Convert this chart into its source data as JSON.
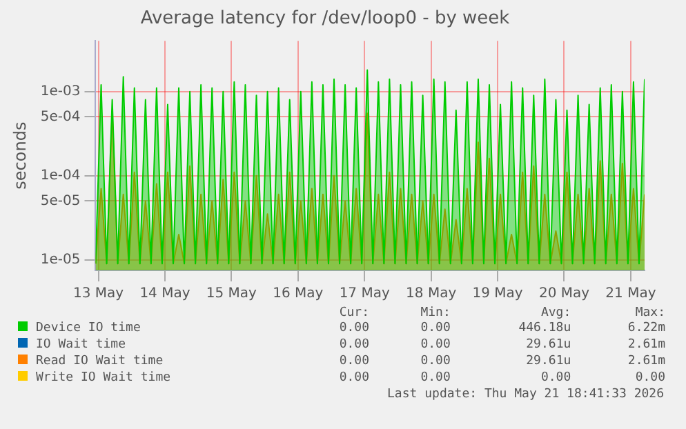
{
  "chart_data": {
    "type": "area",
    "title": "Average latency for /dev/loop0 - by week",
    "ylabel": "seconds",
    "log": "y",
    "grid": true,
    "legend": "bottom",
    "x": [
      "2026-05-12T23:00",
      "2026-05-13T01:00",
      "2026-05-13T03:00",
      "2026-05-13T05:00",
      "2026-05-13T07:00",
      "2026-05-13T09:00",
      "2026-05-13T11:00",
      "2026-05-13T13:00",
      "2026-05-13T15:00",
      "2026-05-13T17:00",
      "2026-05-13T19:00",
      "2026-05-13T21:00",
      "2026-05-13T23:00",
      "2026-05-14T01:00",
      "2026-05-14T03:00",
      "2026-05-14T05:00",
      "2026-05-14T07:00",
      "2026-05-14T09:00",
      "2026-05-14T11:00",
      "2026-05-14T13:00",
      "2026-05-14T15:00",
      "2026-05-14T17:00",
      "2026-05-14T19:00",
      "2026-05-14T21:00",
      "2026-05-14T23:00",
      "2026-05-15T01:00",
      "2026-05-15T03:00",
      "2026-05-15T05:00",
      "2026-05-15T07:00",
      "2026-05-15T09:00",
      "2026-05-15T11:00",
      "2026-05-15T13:00",
      "2026-05-15T15:00",
      "2026-05-15T17:00",
      "2026-05-15T19:00",
      "2026-05-15T21:00",
      "2026-05-15T23:00",
      "2026-05-16T01:00",
      "2026-05-16T03:00",
      "2026-05-16T05:00",
      "2026-05-16T07:00",
      "2026-05-16T09:00",
      "2026-05-16T11:00",
      "2026-05-16T13:00",
      "2026-05-16T15:00",
      "2026-05-16T17:00",
      "2026-05-16T19:00",
      "2026-05-16T21:00",
      "2026-05-16T23:00",
      "2026-05-17T01:00",
      "2026-05-17T03:00",
      "2026-05-17T05:00",
      "2026-05-17T07:00",
      "2026-05-17T09:00",
      "2026-05-17T11:00",
      "2026-05-17T13:00",
      "2026-05-17T15:00",
      "2026-05-17T17:00",
      "2026-05-17T19:00",
      "2026-05-17T21:00",
      "2026-05-17T23:00",
      "2026-05-18T01:00",
      "2026-05-18T03:00",
      "2026-05-18T05:00",
      "2026-05-18T07:00",
      "2026-05-18T09:00",
      "2026-05-18T11:00",
      "2026-05-18T13:00",
      "2026-05-18T15:00",
      "2026-05-18T17:00",
      "2026-05-18T19:00",
      "2026-05-18T21:00",
      "2026-05-18T23:00",
      "2026-05-19T01:00",
      "2026-05-19T03:00",
      "2026-05-19T05:00",
      "2026-05-19T07:00",
      "2026-05-19T09:00",
      "2026-05-19T11:00",
      "2026-05-19T13:00",
      "2026-05-19T15:00",
      "2026-05-19T17:00",
      "2026-05-19T19:00",
      "2026-05-19T21:00",
      "2026-05-19T23:00",
      "2026-05-20T01:00",
      "2026-05-20T03:00",
      "2026-05-20T05:00",
      "2026-05-20T07:00",
      "2026-05-20T09:00",
      "2026-05-20T11:00",
      "2026-05-20T13:00",
      "2026-05-20T15:00",
      "2026-05-20T17:00",
      "2026-05-20T19:00",
      "2026-05-20T21:00",
      "2026-05-20T23:00",
      "2026-05-21T01:00",
      "2026-05-21T03:00",
      "2026-05-21T05:00"
    ],
    "xlim": [
      "2026-05-12T23:00",
      "2026-05-21T05:00"
    ],
    "xticks": [
      {
        "value": "2026-05-13",
        "label": "13 May"
      },
      {
        "value": "2026-05-14",
        "label": "14 May"
      },
      {
        "value": "2026-05-15",
        "label": "15 May"
      },
      {
        "value": "2026-05-16",
        "label": "16 May"
      },
      {
        "value": "2026-05-17",
        "label": "17 May"
      },
      {
        "value": "2026-05-18",
        "label": "18 May"
      },
      {
        "value": "2026-05-19",
        "label": "19 May"
      },
      {
        "value": "2026-05-20",
        "label": "20 May"
      },
      {
        "value": "2026-05-21",
        "label": "21 May"
      }
    ],
    "ylim": [
      7.5e-06,
      0.004
    ],
    "yticks": [
      {
        "value": 1e-05,
        "label": "1e-05"
      },
      {
        "value": 5e-05,
        "label": "5e-05"
      },
      {
        "value": 0.0001,
        "label": "1e-04"
      },
      {
        "value": 0.0005,
        "label": "5e-04"
      },
      {
        "value": 0.001,
        "label": "1e-03"
      }
    ],
    "series": [
      {
        "name": "Device IO time",
        "color": "#00cc00",
        "values": [
          9e-06,
          0.0012,
          9e-06,
          0.0008,
          9e-06,
          0.0015,
          9e-06,
          0.0011,
          9e-06,
          0.0008,
          9e-06,
          0.0011,
          9e-06,
          0.0007,
          9e-06,
          0.0011,
          9e-06,
          0.001,
          9e-06,
          0.0012,
          9e-06,
          0.0011,
          9e-06,
          0.001,
          9e-06,
          0.0013,
          9e-06,
          0.0012,
          9e-06,
          0.0009,
          9e-06,
          0.001,
          9e-06,
          0.0011,
          9e-06,
          0.0008,
          9e-06,
          0.001,
          9e-06,
          0.0013,
          9e-06,
          0.0012,
          9e-06,
          0.0014,
          9e-06,
          0.0012,
          9e-06,
          0.0011,
          9e-06,
          0.0018,
          9e-06,
          0.0013,
          9e-06,
          0.0014,
          9e-06,
          0.0012,
          9e-06,
          0.0013,
          9e-06,
          0.0009,
          9e-06,
          0.0014,
          9e-06,
          0.0013,
          9e-06,
          0.0006,
          9e-06,
          0.0013,
          9e-06,
          0.0014,
          9e-06,
          0.0012,
          9e-06,
          0.0007,
          9e-06,
          0.0013,
          9e-06,
          0.0011,
          9e-06,
          0.0009,
          9e-06,
          0.0014,
          9e-06,
          0.0008,
          9e-06,
          0.0006,
          9e-06,
          0.0009,
          9e-06,
          0.0007,
          9e-06,
          0.0011,
          9e-06,
          0.0012,
          9e-06,
          0.001,
          9e-06,
          0.0013,
          9e-06,
          0.0014
        ]
      },
      {
        "name": "IO Wait time",
        "color": "#0066b3",
        "values": [
          null,
          null,
          null,
          null,
          null,
          null,
          null,
          null,
          null,
          null,
          null,
          null,
          null,
          null,
          null,
          null,
          null,
          null,
          null,
          null,
          null,
          null,
          null,
          null,
          null,
          null,
          null,
          null,
          null,
          null,
          null,
          null,
          null,
          null,
          null,
          null,
          null,
          null,
          null,
          null,
          null,
          null,
          null,
          null,
          null,
          null,
          null,
          null,
          null,
          null,
          null,
          null,
          null,
          null,
          null,
          null,
          null,
          null,
          null,
          null,
          null,
          null,
          null,
          null,
          null,
          null,
          null,
          null,
          null,
          null,
          null,
          null,
          null,
          null,
          null,
          null,
          null,
          null,
          null,
          null,
          null,
          null,
          null,
          null,
          null,
          null,
          null,
          null,
          null,
          null,
          null,
          null,
          null,
          null,
          null,
          null,
          null,
          null,
          null,
          null
        ]
      },
      {
        "name": "Read IO Wait time",
        "color": "#ff8000",
        "values": [
          9e-06,
          7e-05,
          9e-06,
          0.0006,
          9e-06,
          6e-05,
          9e-06,
          0.00011,
          9e-06,
          5e-05,
          9e-06,
          8e-05,
          9e-06,
          0.00011,
          9e-06,
          2e-05,
          9e-06,
          0.00013,
          9e-06,
          6e-05,
          9e-06,
          5e-05,
          9e-06,
          9e-05,
          9e-06,
          0.00011,
          9e-06,
          5e-05,
          9e-06,
          0.0001,
          9e-06,
          3.5e-05,
          9e-06,
          6e-05,
          9e-06,
          0.00011,
          9e-06,
          5e-05,
          9e-06,
          7e-05,
          9e-06,
          6e-05,
          9e-06,
          0.0001,
          9e-06,
          5e-05,
          9e-06,
          7e-05,
          9e-06,
          0.00055,
          9e-06,
          6e-05,
          9e-06,
          0.00011,
          9e-06,
          7e-05,
          9e-06,
          6e-05,
          9e-06,
          5e-05,
          9e-06,
          6e-05,
          9e-06,
          4e-05,
          9e-06,
          3e-05,
          9e-06,
          7e-05,
          9e-06,
          0.00025,
          9e-06,
          0.00016,
          9e-06,
          6e-05,
          9e-06,
          2e-05,
          9e-06,
          0.00011,
          9e-06,
          0.00013,
          9e-06,
          6e-05,
          9e-06,
          2.2e-05,
          9e-06,
          0.00011,
          9e-06,
          6e-05,
          9e-06,
          7e-05,
          9e-06,
          0.00015,
          9e-06,
          6e-05,
          9e-06,
          0.00014,
          9e-06,
          7e-05,
          9e-06,
          6e-05
        ]
      },
      {
        "name": "Write IO Wait time",
        "color": "#ffcc00",
        "values": [
          null,
          null,
          null,
          null,
          null,
          null,
          null,
          null,
          null,
          null,
          null,
          null,
          null,
          null,
          null,
          null,
          null,
          null,
          null,
          null,
          null,
          null,
          null,
          null,
          null,
          null,
          null,
          null,
          null,
          null,
          null,
          null,
          null,
          null,
          null,
          null,
          null,
          null,
          null,
          null,
          null,
          null,
          null,
          null,
          null,
          null,
          null,
          null,
          null,
          null,
          null,
          null,
          null,
          null,
          null,
          null,
          null,
          null,
          null,
          null,
          null,
          null,
          null,
          null,
          null,
          null,
          null,
          null,
          null,
          null,
          null,
          null,
          null,
          null,
          null,
          null,
          null,
          null,
          null,
          null,
          null,
          null,
          null,
          null,
          null,
          null,
          null,
          null,
          null,
          null,
          null,
          null,
          null,
          null,
          null,
          null,
          null,
          null,
          null,
          null
        ]
      }
    ],
    "annotations": [
      "Cur:",
      "Min:",
      "Avg:",
      "Max:",
      "0.00",
      "0.00",
      "446.18u",
      "6.22m",
      "0.00",
      "0.00",
      "29.61u",
      "2.61m",
      "0.00",
      "0.00",
      "29.61u",
      "2.61m",
      "0.00",
      "0.00",
      "0.00",
      "0.00",
      "Last update: Thu May 21 18:41:33 2026"
    ]
  }
}
